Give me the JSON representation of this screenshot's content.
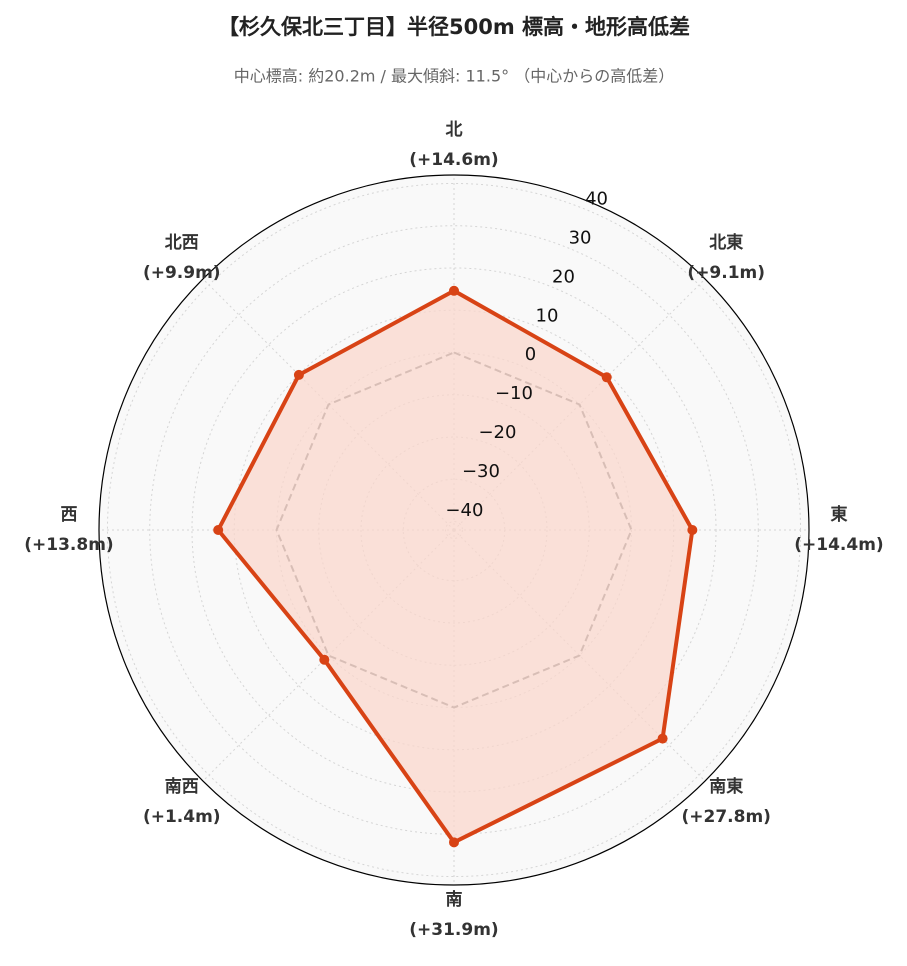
{
  "chart_data": {
    "type": "radar",
    "title": "【杉久保北三丁目】半径500m 標高・地形高低差",
    "subtitle": "中心標高: 約20.2m / 最大傾斜: 11.5° （中心からの高低差）",
    "categories": [
      "北",
      "北東",
      "東",
      "南東",
      "南",
      "南西",
      "西",
      "北西"
    ],
    "series": [
      {
        "color": "#d84315",
        "fill": "#fbd5ca",
        "values": [
          14.6,
          9.1,
          14.4,
          27.8,
          31.9,
          1.4,
          13.8,
          9.9
        ],
        "value_labels": [
          "(+14.6m)",
          "(+9.1m)",
          "(+14.4m)",
          "(+27.8m)",
          "(+31.9m)",
          "(+1.4m)",
          "(+13.8m)",
          "(+9.9m)"
        ]
      }
    ],
    "reference_line": {
      "value": 0,
      "color": "#888888",
      "style": "dashed"
    },
    "ylim": [
      -42,
      42
    ],
    "yticks": [
      {
        "value": -40,
        "label": "−40"
      },
      {
        "value": -30,
        "label": "−30"
      },
      {
        "value": -20,
        "label": "−20"
      },
      {
        "value": -10,
        "label": "−10"
      },
      0,
      10,
      20,
      30,
      40
    ],
    "grid": true
  }
}
